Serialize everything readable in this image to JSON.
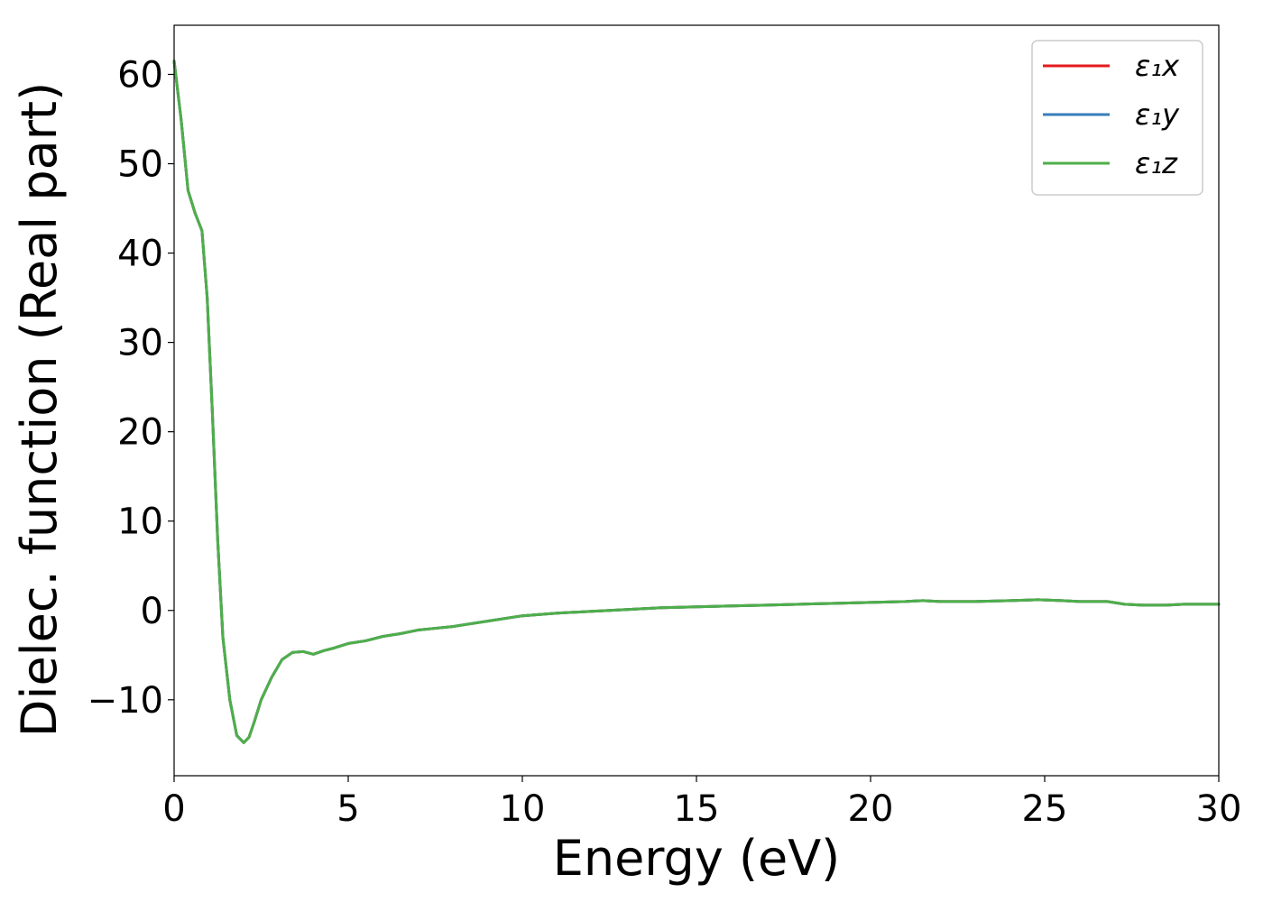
{
  "chart_data": {
    "type": "line",
    "xlabel": "Energy (eV)",
    "ylabel": "Dielec. function (Real part)",
    "xlim": [
      0,
      30
    ],
    "ylim": [
      -18.5,
      65.5
    ],
    "xticks": [
      0,
      5,
      10,
      15,
      20,
      25,
      30
    ],
    "xtick_labels": [
      "0",
      "5",
      "10",
      "15",
      "20",
      "25",
      "30"
    ],
    "yticks": [
      -10,
      0,
      10,
      20,
      30,
      40,
      50,
      60
    ],
    "ytick_labels": [
      "−10",
      "0",
      "10",
      "20",
      "30",
      "40",
      "50",
      "60"
    ],
    "grid": false,
    "legend_position": "top-right",
    "x": [
      0,
      0.2,
      0.4,
      0.6,
      0.8,
      0.95,
      1.1,
      1.25,
      1.4,
      1.6,
      1.8,
      2.0,
      2.15,
      2.3,
      2.5,
      2.8,
      3.1,
      3.4,
      3.7,
      4.0,
      4.3,
      4.6,
      5.0,
      5.5,
      6.0,
      6.5,
      7.0,
      7.5,
      8.0,
      9.0,
      10.0,
      11.0,
      12.0,
      13.0,
      14.0,
      15.0,
      16.0,
      17.0,
      18.0,
      19.0,
      20.0,
      21.0,
      21.5,
      22.0,
      23.0,
      24.0,
      24.8,
      25.5,
      26.0,
      26.8,
      27.3,
      27.8,
      28.5,
      29.0,
      30.0
    ],
    "series": [
      {
        "name": "ε₁x",
        "color": "#e41a1c",
        "y": [
          61.5,
          55.0,
          47.0,
          44.5,
          42.5,
          35.0,
          22.0,
          8.0,
          -3.0,
          -10.0,
          -14.0,
          -14.8,
          -14.2,
          -12.5,
          -10.0,
          -7.5,
          -5.5,
          -4.7,
          -4.6,
          -4.9,
          -4.5,
          -4.2,
          -3.7,
          -3.4,
          -2.9,
          -2.6,
          -2.2,
          -2.0,
          -1.8,
          -1.2,
          -0.6,
          -0.3,
          -0.1,
          0.1,
          0.3,
          0.4,
          0.5,
          0.6,
          0.7,
          0.8,
          0.9,
          1.0,
          1.1,
          1.0,
          1.0,
          1.1,
          1.2,
          1.1,
          1.0,
          1.0,
          0.7,
          0.6,
          0.6,
          0.7,
          0.7
        ]
      },
      {
        "name": "ε₁y",
        "color": "#377eb8",
        "y": [
          61.5,
          55.0,
          47.0,
          44.5,
          42.5,
          35.0,
          22.0,
          8.0,
          -3.0,
          -10.0,
          -14.0,
          -14.8,
          -14.2,
          -12.5,
          -10.0,
          -7.5,
          -5.5,
          -4.7,
          -4.6,
          -4.9,
          -4.5,
          -4.2,
          -3.7,
          -3.4,
          -2.9,
          -2.6,
          -2.2,
          -2.0,
          -1.8,
          -1.2,
          -0.6,
          -0.3,
          -0.1,
          0.1,
          0.3,
          0.4,
          0.5,
          0.6,
          0.7,
          0.8,
          0.9,
          1.0,
          1.1,
          1.0,
          1.0,
          1.1,
          1.2,
          1.1,
          1.0,
          1.0,
          0.7,
          0.6,
          0.6,
          0.7,
          0.7
        ]
      },
      {
        "name": "ε₁z",
        "color": "#4daf4a",
        "y": [
          61.5,
          55.0,
          47.0,
          44.5,
          42.5,
          35.0,
          22.0,
          8.0,
          -3.0,
          -10.0,
          -14.0,
          -14.8,
          -14.2,
          -12.5,
          -10.0,
          -7.5,
          -5.5,
          -4.7,
          -4.6,
          -4.9,
          -4.5,
          -4.2,
          -3.7,
          -3.4,
          -2.9,
          -2.6,
          -2.2,
          -2.0,
          -1.8,
          -1.2,
          -0.6,
          -0.3,
          -0.1,
          0.1,
          0.3,
          0.4,
          0.5,
          0.6,
          0.7,
          0.8,
          0.9,
          1.0,
          1.1,
          1.0,
          1.0,
          1.1,
          1.2,
          1.1,
          1.0,
          1.0,
          0.7,
          0.6,
          0.6,
          0.7,
          0.7
        ]
      }
    ]
  }
}
